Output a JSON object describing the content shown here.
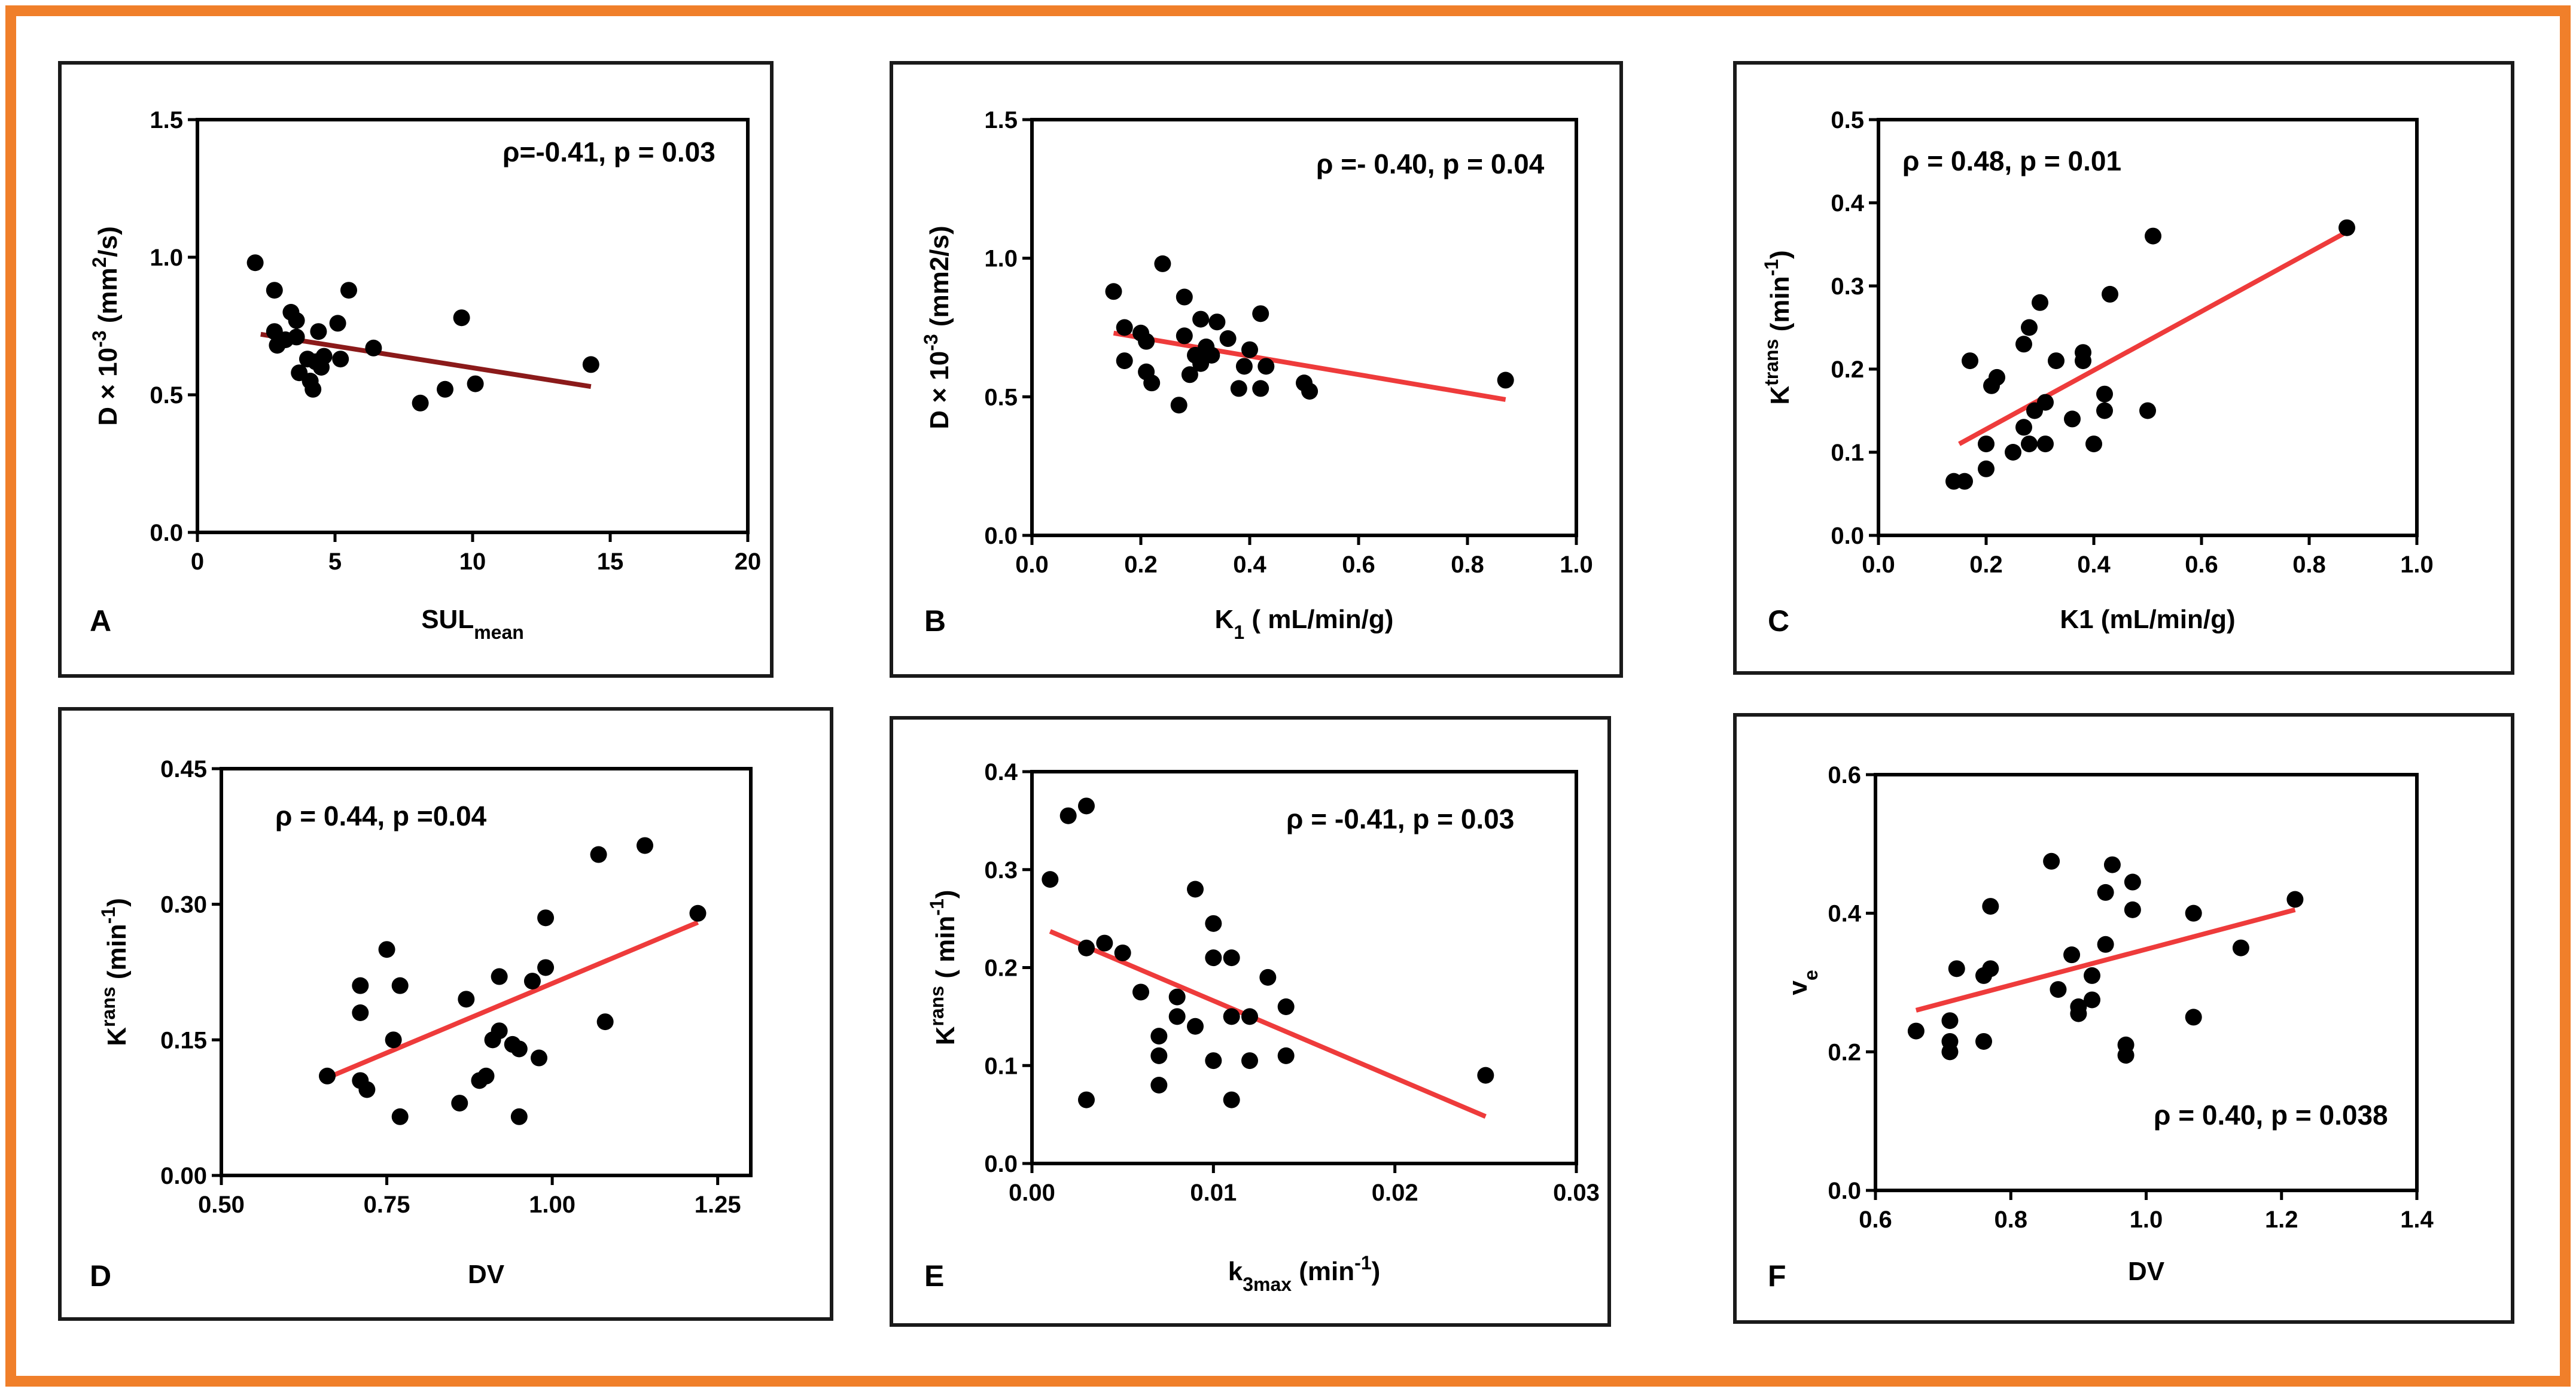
{
  "colors": {
    "frame": "#f07f2a",
    "fit_line": "#ee3b3b",
    "fit_line_dark": "#8b1a1a",
    "point": "#000000"
  },
  "chart_data": [
    {
      "id": "A",
      "type": "scatter",
      "panel_label": "A",
      "xlabel": "SUL",
      "xlabel_sub": "mean",
      "ylabel": "D × 10",
      "ylabel_sup": "-3",
      "ylabel_tail": " (mm",
      "ylabel_tail_sup": "2",
      "ylabel_end": "/s)",
      "annotation": "ρ=-0.41, p = 0.03",
      "xlim": [
        0,
        20
      ],
      "ylim": [
        0,
        1.5
      ],
      "xticks": [
        "0",
        "5",
        "10",
        "15",
        "20"
      ],
      "xtick_values": [
        0,
        5,
        10,
        15,
        20
      ],
      "yticks": [
        "0.0",
        "0.5",
        "1.0",
        "1.5"
      ],
      "ytick_values": [
        0,
        0.5,
        1.0,
        1.5
      ],
      "points": [
        [
          2.1,
          0.98
        ],
        [
          2.8,
          0.88
        ],
        [
          2.8,
          0.73
        ],
        [
          2.9,
          0.68
        ],
        [
          3.2,
          0.7
        ],
        [
          3.4,
          0.8
        ],
        [
          3.6,
          0.71
        ],
        [
          3.6,
          0.77
        ],
        [
          3.7,
          0.58
        ],
        [
          4.0,
          0.63
        ],
        [
          4.1,
          0.55
        ],
        [
          4.2,
          0.52
        ],
        [
          4.3,
          0.62
        ],
        [
          4.4,
          0.73
        ],
        [
          4.5,
          0.6
        ],
        [
          4.6,
          0.64
        ],
        [
          5.1,
          0.76
        ],
        [
          5.2,
          0.63
        ],
        [
          5.5,
          0.88
        ],
        [
          6.4,
          0.67
        ],
        [
          8.1,
          0.47
        ],
        [
          9.0,
          0.52
        ],
        [
          9.6,
          0.78
        ],
        [
          10.1,
          0.54
        ],
        [
          14.3,
          0.61
        ]
      ],
      "fit": [
        [
          2.3,
          0.72
        ],
        [
          14.3,
          0.53
        ]
      ],
      "fit_color": "dark"
    },
    {
      "id": "B",
      "type": "scatter",
      "panel_label": "B",
      "xlabel": "K",
      "xlabel_sub": "1",
      "xlabel_tail": " ( mL/min/g)",
      "ylabel": "D × 10",
      "ylabel_sup": "-3",
      "ylabel_tail": " (mm2/s)",
      "ylabel_tail_sup": "",
      "ylabel_end": "",
      "annotation": "ρ =- 0.40, p = 0.04",
      "xlim": [
        0,
        1.0
      ],
      "ylim": [
        0,
        1.5
      ],
      "xticks": [
        "0.0",
        "0.2",
        "0.4",
        "0.6",
        "0.8",
        "1.0"
      ],
      "xtick_values": [
        0,
        0.2,
        0.4,
        0.6,
        0.8,
        1.0
      ],
      "yticks": [
        "0.0",
        "0.5",
        "1.0",
        "1.5"
      ],
      "ytick_values": [
        0,
        0.5,
        1.0,
        1.5
      ],
      "points": [
        [
          0.15,
          0.88
        ],
        [
          0.17,
          0.75
        ],
        [
          0.17,
          0.63
        ],
        [
          0.2,
          0.73
        ],
        [
          0.21,
          0.7
        ],
        [
          0.21,
          0.59
        ],
        [
          0.22,
          0.55
        ],
        [
          0.24,
          0.98
        ],
        [
          0.27,
          0.47
        ],
        [
          0.28,
          0.86
        ],
        [
          0.28,
          0.72
        ],
        [
          0.29,
          0.58
        ],
        [
          0.3,
          0.65
        ],
        [
          0.31,
          0.78
        ],
        [
          0.31,
          0.62
        ],
        [
          0.32,
          0.68
        ],
        [
          0.33,
          0.65
        ],
        [
          0.34,
          0.77
        ],
        [
          0.36,
          0.71
        ],
        [
          0.38,
          0.53
        ],
        [
          0.39,
          0.61
        ],
        [
          0.4,
          0.67
        ],
        [
          0.42,
          0.8
        ],
        [
          0.42,
          0.53
        ],
        [
          0.43,
          0.61
        ],
        [
          0.5,
          0.55
        ],
        [
          0.51,
          0.52
        ],
        [
          0.87,
          0.56
        ]
      ],
      "fit": [
        [
          0.15,
          0.73
        ],
        [
          0.87,
          0.49
        ]
      ],
      "fit_color": "red"
    },
    {
      "id": "C",
      "type": "scatter",
      "panel_label": "C",
      "xlabel": "K1 (mL/min/g)",
      "ylabel": "K",
      "ylabel_sup": "trans",
      "ylabel_tail": "  (min",
      "ylabel_tail_sup": "-1",
      "ylabel_end": ")",
      "annotation": "ρ = 0.48, p = 0.01",
      "xlim": [
        0,
        1.0
      ],
      "ylim": [
        0,
        0.5
      ],
      "xticks": [
        "0.0",
        "0.2",
        "0.4",
        "0.6",
        "0.8",
        "1.0"
      ],
      "xtick_values": [
        0,
        0.2,
        0.4,
        0.6,
        0.8,
        1.0
      ],
      "yticks": [
        "0.0",
        "0.1",
        "0.2",
        "0.3",
        "0.4",
        "0.5"
      ],
      "ytick_values": [
        0,
        0.1,
        0.2,
        0.3,
        0.4,
        0.5
      ],
      "points": [
        [
          0.14,
          0.065
        ],
        [
          0.16,
          0.065
        ],
        [
          0.17,
          0.21
        ],
        [
          0.2,
          0.11
        ],
        [
          0.2,
          0.08
        ],
        [
          0.21,
          0.18
        ],
        [
          0.22,
          0.19
        ],
        [
          0.25,
          0.1
        ],
        [
          0.27,
          0.13
        ],
        [
          0.27,
          0.23
        ],
        [
          0.28,
          0.11
        ],
        [
          0.28,
          0.25
        ],
        [
          0.29,
          0.15
        ],
        [
          0.3,
          0.28
        ],
        [
          0.31,
          0.16
        ],
        [
          0.31,
          0.11
        ],
        [
          0.33,
          0.21
        ],
        [
          0.36,
          0.14
        ],
        [
          0.38,
          0.22
        ],
        [
          0.38,
          0.21
        ],
        [
          0.4,
          0.11
        ],
        [
          0.42,
          0.15
        ],
        [
          0.42,
          0.17
        ],
        [
          0.43,
          0.29
        ],
        [
          0.5,
          0.15
        ],
        [
          0.51,
          0.36
        ],
        [
          0.87,
          0.37
        ]
      ],
      "fit": [
        [
          0.15,
          0.11
        ],
        [
          0.87,
          0.365
        ]
      ],
      "fit_color": "red"
    },
    {
      "id": "D",
      "type": "scatter",
      "panel_label": "D",
      "xlabel": "DV",
      "ylabel": "K",
      "ylabel_sup": "rans",
      "ylabel_tail": "  (min",
      "ylabel_tail_sup": "-1",
      "ylabel_end": ")",
      "annotation": "ρ = 0.44, p =0.04",
      "xlim": [
        0.5,
        1.3
      ],
      "ylim": [
        0,
        0.45
      ],
      "xticks": [
        "0.50",
        "0.75",
        "1.00",
        "1.25"
      ],
      "xtick_values": [
        0.5,
        0.75,
        1.0,
        1.25
      ],
      "yticks": [
        "0.00",
        "0.15",
        "0.30",
        "0.45"
      ],
      "ytick_values": [
        0,
        0.15,
        0.3,
        0.45
      ],
      "points": [
        [
          0.66,
          0.11
        ],
        [
          0.71,
          0.21
        ],
        [
          0.71,
          0.18
        ],
        [
          0.71,
          0.105
        ],
        [
          0.72,
          0.095
        ],
        [
          0.75,
          0.25
        ],
        [
          0.76,
          0.15
        ],
        [
          0.77,
          0.21
        ],
        [
          0.77,
          0.065
        ],
        [
          0.86,
          0.08
        ],
        [
          0.87,
          0.195
        ],
        [
          0.89,
          0.105
        ],
        [
          0.9,
          0.11
        ],
        [
          0.91,
          0.15
        ],
        [
          0.92,
          0.16
        ],
        [
          0.92,
          0.22
        ],
        [
          0.94,
          0.145
        ],
        [
          0.95,
          0.14
        ],
        [
          0.95,
          0.065
        ],
        [
          0.97,
          0.215
        ],
        [
          0.98,
          0.13
        ],
        [
          0.99,
          0.23
        ],
        [
          0.99,
          0.285
        ],
        [
          1.07,
          0.355
        ],
        [
          1.08,
          0.17
        ],
        [
          1.14,
          0.365
        ],
        [
          1.22,
          0.29
        ]
      ],
      "fit": [
        [
          0.66,
          0.108
        ],
        [
          1.22,
          0.28
        ]
      ],
      "fit_color": "red"
    },
    {
      "id": "E",
      "type": "scatter",
      "panel_label": "E",
      "xlabel": "k",
      "xlabel_sub": "3max",
      "xlabel_tail": " (min",
      "xlabel_sup": "-1",
      "xlabel_end": ")",
      "ylabel": "K",
      "ylabel_sup": "rans",
      "ylabel_tail": " ( min",
      "ylabel_tail_sup": "-1",
      "ylabel_end": ")",
      "annotation": "ρ = -0.41, p = 0.03",
      "xlim": [
        0,
        0.03
      ],
      "ylim": [
        0,
        0.4
      ],
      "xticks": [
        "0.00",
        "0.01",
        "0.02",
        "0.03"
      ],
      "xtick_values": [
        0,
        0.01,
        0.02,
        0.03
      ],
      "yticks": [
        "0.0",
        "0.1",
        "0.2",
        "0.3",
        "0.4"
      ],
      "ytick_values": [
        0,
        0.1,
        0.2,
        0.3,
        0.4
      ],
      "points": [
        [
          0.001,
          0.29
        ],
        [
          0.002,
          0.355
        ],
        [
          0.003,
          0.365
        ],
        [
          0.003,
          0.22
        ],
        [
          0.003,
          0.065
        ],
        [
          0.004,
          0.225
        ],
        [
          0.005,
          0.215
        ],
        [
          0.006,
          0.175
        ],
        [
          0.007,
          0.13
        ],
        [
          0.007,
          0.11
        ],
        [
          0.007,
          0.08
        ],
        [
          0.008,
          0.17
        ],
        [
          0.008,
          0.15
        ],
        [
          0.009,
          0.28
        ],
        [
          0.009,
          0.14
        ],
        [
          0.01,
          0.245
        ],
        [
          0.01,
          0.21
        ],
        [
          0.01,
          0.105
        ],
        [
          0.011,
          0.21
        ],
        [
          0.011,
          0.15
        ],
        [
          0.011,
          0.065
        ],
        [
          0.012,
          0.15
        ],
        [
          0.012,
          0.105
        ],
        [
          0.013,
          0.19
        ],
        [
          0.014,
          0.16
        ],
        [
          0.014,
          0.11
        ],
        [
          0.025,
          0.09
        ]
      ],
      "fit": [
        [
          0.001,
          0.237
        ],
        [
          0.025,
          0.048
        ]
      ],
      "fit_color": "red"
    },
    {
      "id": "F",
      "type": "scatter",
      "panel_label": "F",
      "xlabel": "DV",
      "ylabel": "v",
      "ylabel_sub": "e",
      "annotation": "ρ = 0.40, p = 0.038",
      "xlim": [
        0.6,
        1.4
      ],
      "ylim": [
        0,
        0.6
      ],
      "xticks": [
        "0.6",
        "0.8",
        "1.0",
        "1.2",
        "1.4"
      ],
      "xtick_values": [
        0.6,
        0.8,
        1.0,
        1.2,
        1.4
      ],
      "yticks": [
        "0.0",
        "0.2",
        "0.4",
        "0.6"
      ],
      "ytick_values": [
        0,
        0.2,
        0.4,
        0.6
      ],
      "points": [
        [
          0.66,
          0.23
        ],
        [
          0.71,
          0.245
        ],
        [
          0.71,
          0.215
        ],
        [
          0.71,
          0.2
        ],
        [
          0.72,
          0.32
        ],
        [
          0.76,
          0.31
        ],
        [
          0.76,
          0.215
        ],
        [
          0.77,
          0.32
        ],
        [
          0.77,
          0.41
        ],
        [
          0.86,
          0.475
        ],
        [
          0.87,
          0.29
        ],
        [
          0.89,
          0.34
        ],
        [
          0.9,
          0.265
        ],
        [
          0.9,
          0.255
        ],
        [
          0.92,
          0.31
        ],
        [
          0.92,
          0.275
        ],
        [
          0.94,
          0.355
        ],
        [
          0.94,
          0.43
        ],
        [
          0.95,
          0.47
        ],
        [
          0.97,
          0.21
        ],
        [
          0.97,
          0.195
        ],
        [
          0.98,
          0.405
        ],
        [
          0.98,
          0.445
        ],
        [
          1.07,
          0.25
        ],
        [
          1.07,
          0.4
        ],
        [
          1.14,
          0.35
        ],
        [
          1.22,
          0.42
        ]
      ],
      "fit": [
        [
          0.66,
          0.26
        ],
        [
          1.22,
          0.405
        ]
      ],
      "fit_color": "red"
    }
  ]
}
